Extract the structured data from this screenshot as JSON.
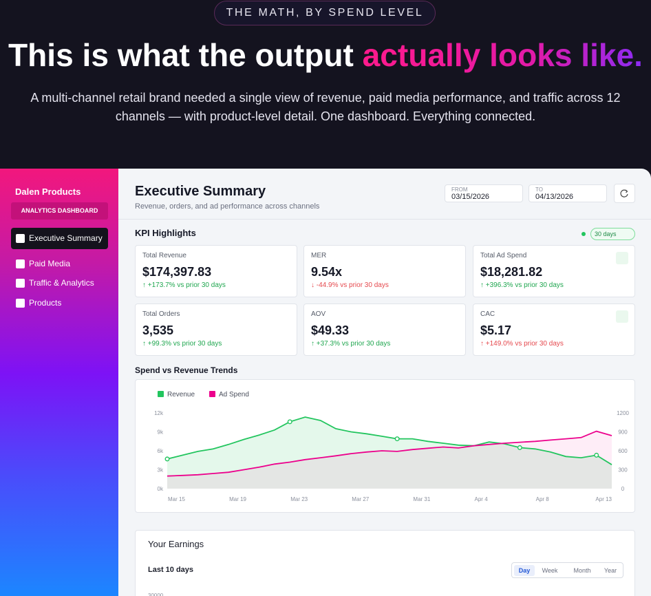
{
  "banner": {
    "eyebrow": "THE MATH, BY SPEND LEVEL",
    "headline": "This is what the output ",
    "headline_highlight": "actually looks like.",
    "description": "A multi-channel retail brand needed a single view of revenue, paid media performance, and traffic across 12 channels — with product-level detail. One dashboard. Everything connected."
  },
  "sidebar": {
    "brand": "Dalen Products",
    "badge": "ANALYTICS DASHBOARD",
    "nav": [
      "Executive Summary",
      "Paid Media",
      "Traffic & Analytics",
      "Products"
    ]
  },
  "header": {
    "title": "Executive Summary",
    "subtitle": "Revenue, orders, and ad performance across channels",
    "from_label": "FROM",
    "from_date": "03/15/2026",
    "to_label": "TO",
    "to_date": "04/13/2026"
  },
  "kpi": {
    "title": "KPI Highlights",
    "period": "30 days",
    "cards": [
      {
        "label": "Total Revenue",
        "value": "$174,397.83",
        "change": "↑ +173.7% vs prior 30 days"
      },
      {
        "label": "MER",
        "value": "9.54x",
        "change": "↓ -44.9% vs prior 30 days"
      },
      {
        "label": "Total Ad Spend",
        "value": "$18,281.82",
        "change": "↑ +396.3% vs prior 30 days"
      },
      {
        "label": "Total Orders",
        "value": "3,535",
        "change": "↑ +99.3% vs prior 30 days"
      },
      {
        "label": "AOV",
        "value": "$49.33",
        "change": "↑ +37.3% vs prior 30 days"
      },
      {
        "label": "CAC",
        "value": "$5.17",
        "change": "↑ +149.0% vs prior 30 days"
      }
    ]
  },
  "trend_chart": {
    "type": "line",
    "title": "Spend vs Revenue Trends",
    "categories": [
      "Mar 15",
      null,
      null,
      null,
      "Mar 19",
      null,
      null,
      null,
      "Mar 23",
      null,
      null,
      null,
      "Mar 27",
      null,
      null,
      null,
      "Mar 31",
      null,
      null,
      null,
      "Apr 4",
      null,
      null,
      null,
      "Apr 8",
      null,
      null,
      null,
      null,
      "Apr 13"
    ],
    "series": [
      {
        "name": "Revenue",
        "color": "#22c55e",
        "values": [
          4700,
          5300,
          5900,
          6300,
          7000,
          7800,
          8500,
          9300,
          10600,
          11350,
          10800,
          9500,
          9000,
          8700,
          8300,
          7900,
          7900,
          7500,
          7200,
          6900,
          6800,
          7400,
          7100,
          6500,
          6300,
          5800,
          5100,
          4900,
          5300,
          3800
        ]
      },
      {
        "name": "Ad Spend",
        "color": "#ec008c",
        "axis": "y2",
        "values": [
          200,
          210,
          220,
          240,
          260,
          300,
          340,
          390,
          420,
          460,
          490,
          520,
          555,
          580,
          600,
          590,
          620,
          640,
          660,
          645,
          680,
          700,
          720,
          735,
          750,
          770,
          790,
          810,
          910,
          840
        ]
      }
    ],
    "ylim": [
      0,
      12000
    ],
    "yticks": [
      {
        "value": 0,
        "label": "0k"
      },
      {
        "value": 3000,
        "label": "3k"
      },
      {
        "value": 6000,
        "label": "6k"
      },
      {
        "value": 9000,
        "label": "9k"
      },
      {
        "value": 12000,
        "label": "12k"
      }
    ],
    "y2lim": [
      0,
      1200
    ],
    "y2ticks": [
      0,
      300,
      600,
      900,
      1200
    ]
  },
  "earnings": {
    "title": "Your Earnings",
    "range": "Last 10 days",
    "tabs": [
      "Day",
      "Week",
      "Month",
      "Year"
    ],
    "axis_top": "30000"
  }
}
